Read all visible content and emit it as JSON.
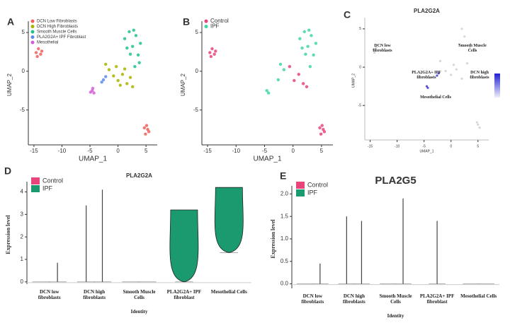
{
  "chart_data": [
    {
      "type": "scatter",
      "panel": "A",
      "xlabel": "UMAP_1",
      "ylabel": "UMAP_2",
      "xlim": [
        -16,
        7
      ],
      "ylim": [
        -9.5,
        6
      ],
      "xticks": [
        -15,
        -10,
        -5,
        0,
        5
      ],
      "yticks": [
        -5,
        0,
        5
      ],
      "legend": "top-left",
      "series": [
        {
          "name": "DCN Low Fibroblasts",
          "color": "#f0605a",
          "x": [
            -14.6,
            -14.2,
            -13.8,
            -14.4,
            -13.6,
            4.7,
            5.1,
            5.5,
            4.9,
            5.3
          ],
          "y": [
            2.4,
            2.9,
            2.2,
            1.9,
            2.6,
            -7.3,
            -7.0,
            -7.8,
            -8.1,
            -7.5
          ]
        },
        {
          "name": "DCN High Fibroblasts",
          "color": "#a8b400",
          "x": [
            -2.2,
            -1.6,
            -0.8,
            0,
            0.8,
            1.6,
            2.2,
            -0.3,
            1.2,
            2.6,
            0.4
          ],
          "y": [
            0.9,
            0.2,
            -0.6,
            -1.2,
            -0.4,
            -1.6,
            -0.8,
            0.6,
            0.3,
            -2.0,
            -1.8
          ]
        },
        {
          "name": "Smooth Muscle Cells",
          "color": "#23c18b",
          "x": [
            1.2,
            2,
            2.6,
            3.2,
            3.6,
            2.2,
            3,
            4,
            1.6,
            3.8,
            2.8
          ],
          "y": [
            4.2,
            5.1,
            3.2,
            4.6,
            2.1,
            2.2,
            0.6,
            3.6,
            3,
            1.1,
            5.3
          ]
        },
        {
          "name": "PLA2G2A+ IPF Fibroblast",
          "color": "#5a8cf2",
          "x": [
            -2.6,
            -2.2,
            -2.9
          ],
          "y": [
            -1.1,
            -0.7,
            -1.4
          ]
        },
        {
          "name": "Mesothelial",
          "color": "#d35ed8",
          "x": [
            -4.6,
            -4.3,
            -4.9,
            -4.5
          ],
          "y": [
            -2.5,
            -2.8,
            -2.7,
            -2.2
          ]
        }
      ]
    },
    {
      "type": "scatter",
      "panel": "B",
      "xlabel": "UMAP_1",
      "ylabel": "UMAP_2",
      "xlim": [
        -16,
        7
      ],
      "ylim": [
        -9.5,
        6
      ],
      "xticks": [
        -15,
        -10,
        -5,
        0,
        5
      ],
      "yticks": [
        -5,
        0,
        5
      ],
      "legend": "top-left",
      "series": [
        {
          "name": "Control",
          "color": "#e8457a",
          "x": [
            -14.6,
            -14.2,
            -13.8,
            -14.4,
            -13.6,
            4.7,
            5.1,
            5.5,
            4.9,
            5.3,
            0.2,
            1,
            1.8,
            -0.6,
            2.4
          ],
          "y": [
            2.4,
            2.9,
            2.2,
            1.9,
            2.6,
            -7.3,
            -7.0,
            -7.8,
            -8.1,
            -7.5,
            -1.2,
            -0.4,
            -1.6,
            0.6,
            -2.0
          ]
        },
        {
          "name": "IPF",
          "color": "#3fd6a8",
          "x": [
            -2.2,
            -1.6,
            1.2,
            2,
            2.6,
            3.2,
            3.6,
            2.2,
            3,
            4,
            1.6,
            -4.6,
            -4.3,
            -2.6,
            2.8
          ],
          "y": [
            0.9,
            0.2,
            4.2,
            5.1,
            3.2,
            4.6,
            2.1,
            2.2,
            0.6,
            3.6,
            3,
            -2.5,
            -2.8,
            -1.1,
            5.3
          ]
        }
      ]
    },
    {
      "type": "scatter",
      "panel": "C",
      "title": "PLA2G2A",
      "xlabel": "UMAP_1",
      "ylabel": "UMAP_2",
      "xlim": [
        -16,
        7
      ],
      "ylim": [
        -9.5,
        6
      ],
      "xticks": [
        -15,
        -10,
        -5,
        0,
        5
      ],
      "yticks": [
        -5,
        0,
        5
      ],
      "annotations": [
        "DCN low fibroblasts",
        "Smooth Muscle Cells",
        "PLA2G2A+ IPF fibroblasts",
        "DCN high fibroblasts",
        "Mesothelial Cells"
      ],
      "series": [
        {
          "color": "#d0d0d0",
          "x": [
            -14.4,
            -13.9,
            -14.2,
            -2,
            -1,
            0,
            1,
            2,
            1.5,
            2.5,
            3,
            3.5,
            2,
            0.5,
            5,
            5.3,
            4.8
          ],
          "y": [
            2.3,
            2.6,
            1.9,
            0.8,
            -0.5,
            -1,
            -0.3,
            5,
            3,
            4,
            0.5,
            2.5,
            -1.5,
            0.3,
            -7.5,
            -7.9,
            -7.2
          ]
        },
        {
          "color": "#3a3ad0",
          "x": [
            -4.5,
            -4.3,
            -2.6,
            -2.3
          ],
          "y": [
            -2.5,
            -2.7,
            -1.1,
            -0.8
          ]
        }
      ]
    },
    {
      "type": "violin",
      "panel": "D",
      "title": "PLA2G2A",
      "ylabel": "Expression level",
      "xlabel": "Identity",
      "ylim": [
        -0.1,
        4.3
      ],
      "yticks": [
        0,
        1,
        2,
        3,
        4
      ],
      "legend": "top-left",
      "categories": [
        "DCN low fibroblasts",
        "DCN high fibroblasts",
        "Smooth Muscle Cells",
        "PLA2G2A+ IPF fibroblast",
        "Mesothelial Cells"
      ],
      "series": [
        {
          "name": "Control",
          "color": "#e8457a",
          "values": [
            0,
            3.4,
            0,
            null,
            null
          ],
          "mins": [
            0,
            0,
            0,
            null,
            null
          ]
        },
        {
          "name": "IPF",
          "color": "#1a9a6e",
          "values": [
            0.85,
            4.1,
            0,
            3.2,
            4.2
          ],
          "mins": [
            0,
            0,
            0,
            0,
            1.3
          ]
        }
      ]
    },
    {
      "type": "violin",
      "panel": "E",
      "title": "PLA2G5",
      "ylabel": "Expression level",
      "xlabel": "Identity",
      "ylim": [
        -0.1,
        2.1
      ],
      "yticks": [
        {
          "value": 0,
          "label": "0.0"
        },
        {
          "value": 0.5,
          "label": "0.5"
        },
        {
          "value": 1,
          "label": "1.0"
        },
        {
          "value": 1.5,
          "label": "1.5"
        },
        {
          "value": 2,
          "label": "2.0"
        }
      ],
      "legend": "top-left",
      "categories": [
        "DCN low fibroblasts",
        "DCN high fibroblasts",
        "Smooth Muscle Cells",
        "PLA2G2A+ IPF fibroblast",
        "Mesothelial Cells"
      ],
      "series": [
        {
          "name": "Control",
          "color": "#e8457a",
          "values": [
            0,
            1.5,
            0,
            null,
            0
          ]
        },
        {
          "name": "IPF",
          "color": "#1a9a6e",
          "values": [
            0.45,
            1.4,
            1.9,
            1.4,
            0
          ]
        }
      ]
    }
  ]
}
